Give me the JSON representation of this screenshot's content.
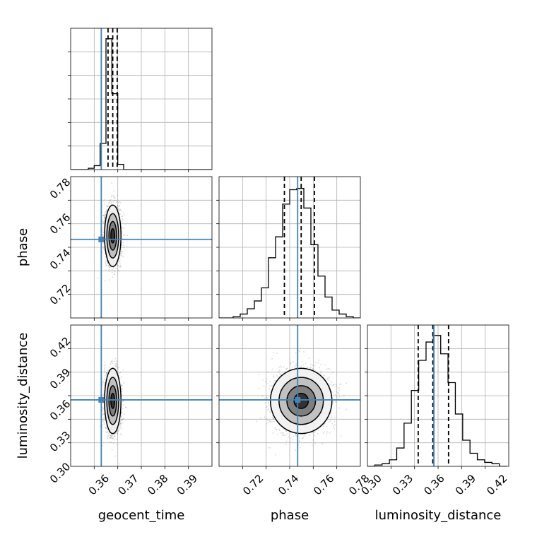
{
  "figure": {
    "parameters": [
      "geocent_time",
      "phase",
      "luminosity_distance"
    ],
    "truth_color": "#4682b4"
  },
  "chart_data": [
    {
      "type": "histogram",
      "panel": "geocent_time-marginal",
      "xlabel": "",
      "xlim": [
        0.35,
        0.398
      ],
      "bins": [
        0.35,
        0.352,
        0.354,
        0.356,
        0.358,
        0.36,
        0.362,
        0.364,
        0.366,
        0.368,
        0.37,
        0.372,
        0.374,
        0.376,
        0.378,
        0.38,
        0.382,
        0.384,
        0.386,
        0.388,
        0.39,
        0.392,
        0.394,
        0.396,
        0.398
      ],
      "counts": [
        0,
        0,
        0,
        0.01,
        0.03,
        0.2,
        1.0,
        0.58,
        0.04,
        0,
        0,
        0,
        0,
        0,
        0,
        0,
        0,
        0,
        0,
        0,
        0,
        0,
        0,
        0
      ],
      "quantiles": [
        0.3627,
        0.3643,
        0.3658
      ],
      "truth": 0.3604,
      "grid": true
    },
    {
      "type": "histogram",
      "panel": "phase-marginal",
      "xlim": [
        0.7,
        0.78
      ],
      "bins": [
        0.7,
        0.704,
        0.708,
        0.712,
        0.716,
        0.72,
        0.724,
        0.728,
        0.732,
        0.736,
        0.74,
        0.744,
        0.748,
        0.752,
        0.756,
        0.76,
        0.764,
        0.768,
        0.772,
        0.776,
        0.78
      ],
      "counts": [
        0,
        0,
        0.01,
        0.03,
        0.07,
        0.13,
        0.23,
        0.46,
        0.62,
        0.87,
        0.98,
        0.99,
        0.84,
        0.56,
        0.32,
        0.16,
        0.06,
        0.03,
        0.01,
        0
      ],
      "quantiles": [
        0.737,
        0.7465,
        0.754
      ],
      "truth": 0.7445,
      "grid": true
    },
    {
      "type": "histogram",
      "panel": "luminosity_distance-marginal",
      "xlabel": "luminosity_distance",
      "xlim": [
        0.295,
        0.43
      ],
      "xticks": [
        "0.30",
        "0.33",
        "0.36",
        "0.39",
        "0.42"
      ],
      "bins": [
        0.295,
        0.302,
        0.309,
        0.316,
        0.323,
        0.33,
        0.337,
        0.344,
        0.351,
        0.358,
        0.365,
        0.372,
        0.379,
        0.386,
        0.393,
        0.4,
        0.407,
        0.414,
        0.421,
        0.428
      ],
      "counts": [
        0,
        0.01,
        0.02,
        0.05,
        0.14,
        0.33,
        0.58,
        0.81,
        0.95,
        1.0,
        0.86,
        0.64,
        0.4,
        0.2,
        0.1,
        0.05,
        0.03,
        0.02,
        0
      ],
      "quantiles": [
        0.3435,
        0.3575,
        0.3725
      ],
      "truth": 0.3585,
      "grid": true
    },
    {
      "type": "scatter-contour",
      "panel": "phase-vs-geocent_time",
      "x": "geocent_time",
      "y": "phase",
      "xlim": [
        0.35,
        0.398
      ],
      "ylim": [
        0.7,
        0.78
      ],
      "yticks": [
        "0.72",
        "0.74",
        "0.76",
        "0.78"
      ],
      "ylabel": "phase",
      "center": [
        0.3643,
        0.7465
      ],
      "sigma": [
        0.0013,
        0.0081
      ],
      "truth": [
        0.3604,
        0.7445
      ],
      "grid": true
    },
    {
      "type": "scatter-contour",
      "panel": "luminosity_distance-vs-geocent_time",
      "x": "geocent_time",
      "y": "luminosity_distance",
      "xlim": [
        0.35,
        0.398
      ],
      "ylim": [
        0.295,
        0.43
      ],
      "xticks": [
        "0.36",
        "0.37",
        "0.38",
        "0.39"
      ],
      "yticks": [
        "0.30",
        "0.33",
        "0.36",
        "0.39",
        "0.42"
      ],
      "xlabel": "geocent_time",
      "ylabel": "luminosity_distance",
      "center": [
        0.3643,
        0.3575
      ],
      "sigma": [
        0.0013,
        0.0145
      ],
      "truth": [
        0.3604,
        0.3585
      ],
      "grid": true
    },
    {
      "type": "scatter-contour",
      "panel": "luminosity_distance-vs-phase",
      "x": "phase",
      "y": "luminosity_distance",
      "xlim": [
        0.7,
        0.78
      ],
      "ylim": [
        0.295,
        0.43
      ],
      "xticks": [
        "0.72",
        "0.74",
        "0.76",
        "0.78"
      ],
      "xlabel": "phase",
      "center": [
        0.7465,
        0.3575
      ],
      "sigma": [
        0.0081,
        0.0145
      ],
      "truth": [
        0.7445,
        0.3585
      ],
      "grid": true
    }
  ]
}
